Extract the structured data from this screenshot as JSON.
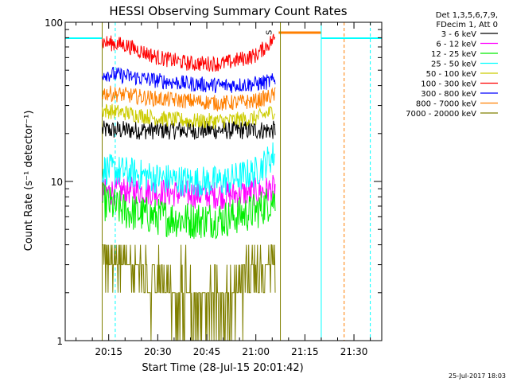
{
  "chart_data": {
    "type": "line",
    "title": "HESSI Observing Summary Count Rates",
    "xlabel": "Start Time (28-Jul-15 20:01:42)",
    "ylabel": "Count Rate (s⁻¹ detector⁻¹)",
    "y_scale": "log",
    "ylim": [
      1,
      100
    ],
    "x_ticks": [
      "20:15",
      "20:30",
      "20:45",
      "21:00",
      "21:15",
      "21:30"
    ],
    "y_ticks": [
      "1",
      "10",
      "100"
    ],
    "legend_header": [
      "Det 1,3,5,6,7,9,",
      "FDecim 1, Att 0"
    ],
    "legend_position": "outside-right",
    "footer": "25-Jul-2017 18:03",
    "marker_label": "S",
    "data_interval": [
      "20:13",
      "21:06"
    ],
    "series": [
      {
        "name": "3 - 6 keV",
        "color": "#000000",
        "x": [
          "20:13",
          "20:20",
          "20:30",
          "20:40",
          "20:50",
          "21:00",
          "21:06"
        ],
        "y": [
          21,
          21,
          21,
          21,
          21,
          21,
          21
        ]
      },
      {
        "name": "6 - 12 keV",
        "color": "#ff00ff",
        "x": [
          "20:13",
          "20:20",
          "20:30",
          "20:40",
          "20:50",
          "21:00",
          "21:06"
        ],
        "y": [
          8.5,
          8.8,
          8.6,
          8.3,
          8.2,
          8.6,
          9
        ]
      },
      {
        "name": "12 - 25 keV",
        "color": "#00ee00",
        "x": [
          "20:13",
          "20:20",
          "20:30",
          "20:40",
          "20:50",
          "21:00",
          "21:06"
        ],
        "y": [
          7.5,
          6.5,
          6,
          5.7,
          5.8,
          6.5,
          7.8
        ]
      },
      {
        "name": "25 - 50 keV",
        "color": "#00ffff",
        "x": [
          "20:13",
          "20:20",
          "20:30",
          "20:40",
          "20:50",
          "21:00",
          "21:06"
        ],
        "y": [
          12,
          11.5,
          10.5,
          10,
          10,
          11.5,
          15
        ]
      },
      {
        "name": "50 - 100 keV",
        "color": "#cccc00",
        "x": [
          "20:13",
          "20:20",
          "20:30",
          "20:40",
          "20:50",
          "21:00",
          "21:06"
        ],
        "y": [
          28,
          27,
          25,
          24,
          24,
          25,
          28
        ]
      },
      {
        "name": "100 - 300 keV",
        "color": "#ff0000",
        "x": [
          "20:13",
          "20:20",
          "20:30",
          "20:40",
          "20:50",
          "21:00",
          "21:06"
        ],
        "y": [
          75,
          72,
          60,
          55,
          55,
          62,
          80
        ]
      },
      {
        "name": "300 - 800 keV",
        "color": "#0000ff",
        "x": [
          "20:13",
          "20:20",
          "20:30",
          "20:40",
          "20:50",
          "21:00",
          "21:06"
        ],
        "y": [
          48,
          46,
          43,
          41,
          40,
          41,
          43
        ]
      },
      {
        "name": "800 - 7000 keV",
        "color": "#ff7f00",
        "x": [
          "20:13",
          "20:20",
          "20:30",
          "20:40",
          "20:50",
          "21:00",
          "21:06"
        ],
        "y": [
          36,
          35,
          33,
          32,
          31,
          32,
          35
        ]
      },
      {
        "name": "7000 - 20000 keV",
        "color": "#808000",
        "x": [
          "20:13",
          "20:20",
          "20:30",
          "20:40",
          "20:50",
          "21:00",
          "21:06"
        ],
        "y": [
          3,
          2.8,
          2.2,
          1.6,
          1.6,
          2.4,
          2.8
        ]
      }
    ]
  }
}
